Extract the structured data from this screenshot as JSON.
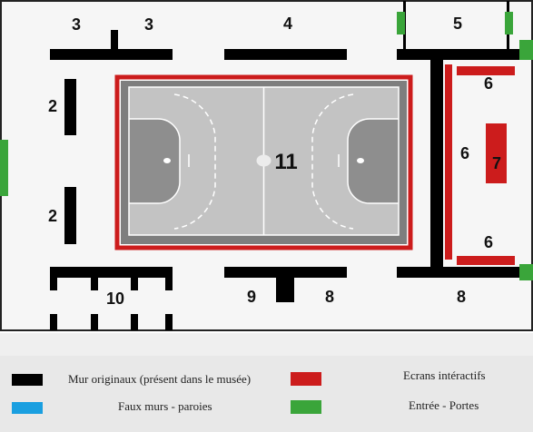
{
  "colors": {
    "wall_original": "#000000",
    "fake_wall": "#1a9fe0",
    "interactive_screen": "#cc1c1c",
    "entrance": "#3aa53a",
    "court_floor": "#c2c2c2",
    "court_border": "#7a7a7a",
    "court_area": "#8e8e8e",
    "court_line": "#ffffff",
    "room_bg": "#f6f6f6",
    "legend_bg": "#e7e7e7"
  },
  "zones": {
    "z3a": "3",
    "z3b": "3",
    "z4": "4",
    "z5": "5",
    "z2a": "2",
    "z2b": "2",
    "z6a": "6",
    "z6b": "6",
    "z6c": "6",
    "z7": "7",
    "z11": "11",
    "z10": "10",
    "z9": "9",
    "z8a": "8",
    "z8b": "8"
  },
  "legend": {
    "wall_original_label": "Mur originaux (présent dans le musée)",
    "fake_wall_label": "Faux murs - paroies",
    "screen_label": "Ecrans intéractifs",
    "entrance_label": "Entrée - Portes"
  }
}
